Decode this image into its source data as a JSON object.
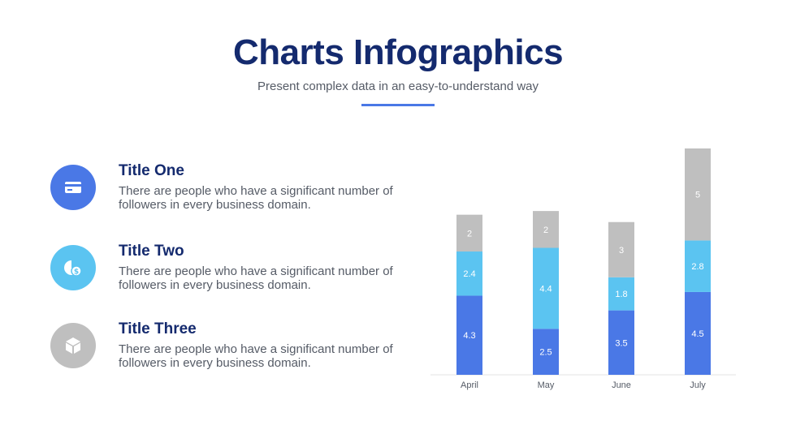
{
  "header": {
    "title": "Charts Infographics",
    "subtitle": "Present complex data in an easy-to-understand way"
  },
  "colors": {
    "navy": "#142a6e",
    "blue": "#4a78e6",
    "lightblue": "#5bc4f1",
    "gray": "#bfbfbf"
  },
  "items": [
    {
      "title": "Title One",
      "text": "There are people who have a significant number of followers in every business domain.",
      "icon": "credit-card-icon",
      "color": "#4a78e6"
    },
    {
      "title": "Title Two",
      "text": "There are people who have a significant number of followers in every business domain.",
      "icon": "pie-dollar-icon",
      "color": "#5bc4f1"
    },
    {
      "title": "Title Three",
      "text": "There are people who have a significant number of followers in every business domain.",
      "icon": "box-icon",
      "color": "#bfbfbf"
    }
  ],
  "chart_data": {
    "type": "bar",
    "stacked": true,
    "categories": [
      "April",
      "May",
      "June",
      "July"
    ],
    "series": [
      {
        "values": [
          4.3,
          2.5,
          3.5,
          4.5
        ],
        "color": "#4a78e6"
      },
      {
        "values": [
          2.4,
          4.4,
          1.8,
          2.8
        ],
        "color": "#5bc4f1"
      },
      {
        "values": [
          2,
          2,
          3,
          5
        ],
        "color": "#bfbfbf"
      }
    ],
    "grid": false,
    "legend": "none"
  }
}
